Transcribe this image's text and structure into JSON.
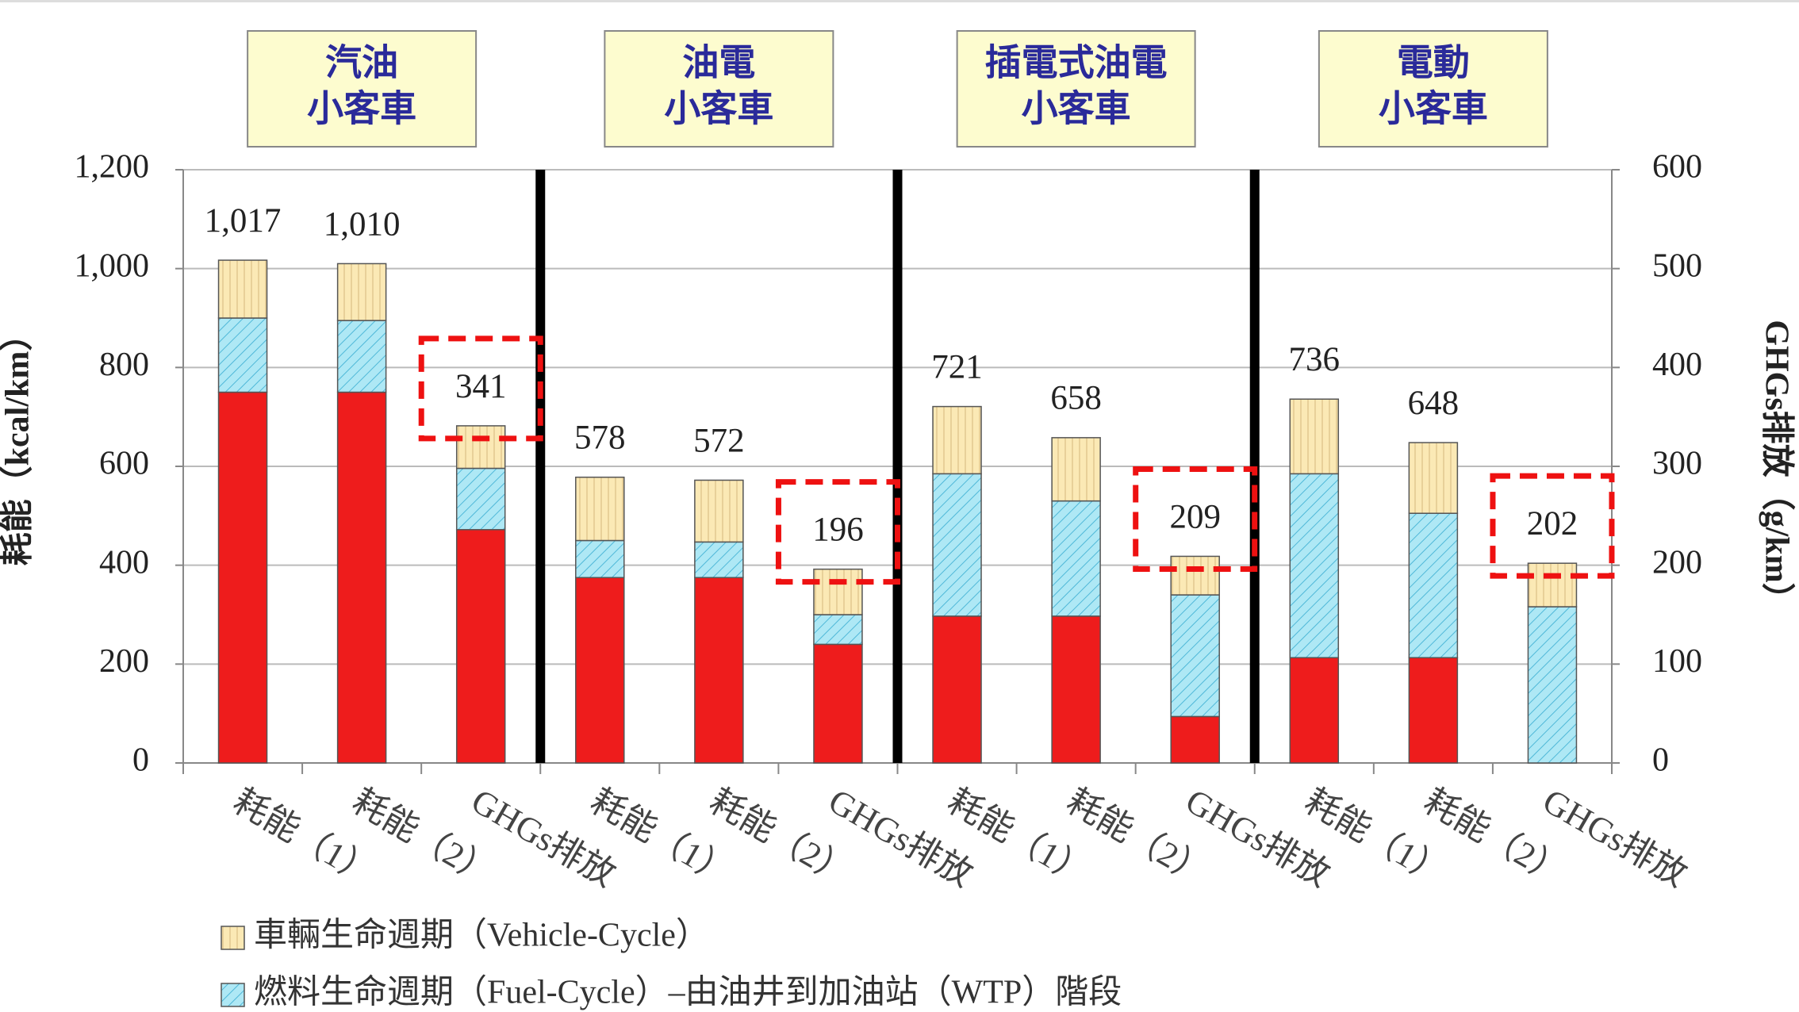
{
  "chart_data": {
    "type": "stacked_bar",
    "groups": [
      {
        "lines": [
          "汽油",
          "小客車"
        ]
      },
      {
        "lines": [
          "油電",
          "小客車"
        ]
      },
      {
        "lines": [
          "插電式油電",
          "小客車"
        ]
      },
      {
        "lines": [
          "電動",
          "小客車"
        ]
      }
    ],
    "categories": [
      "耗能（1）",
      "耗能（2）",
      "GHGs排放",
      "耗能（1）",
      "耗能（2）",
      "GHGs排放",
      "耗能（1）",
      "耗能（2）",
      "GHGs排放",
      "耗能（1）",
      "耗能（2）",
      "GHGs排放"
    ],
    "series": [
      {
        "color": "#ee1c1c",
        "axis": "y",
        "values": [
          750,
          750,
          null,
          375,
          375,
          null,
          297,
          297,
          null,
          213,
          213,
          null
        ]
      },
      {
        "name": "燃料生命週期（Fuel-Cycle）–由油井到加油站（WTP）階段",
        "color": "#aee8f5",
        "axis": "y",
        "values": [
          150,
          145,
          null,
          75,
          72,
          null,
          288,
          233,
          null,
          372,
          292,
          null
        ]
      },
      {
        "name": "車輛生命週期（Vehicle-Cycle）",
        "color": "#fbe9b5",
        "axis": "y",
        "values": [
          117,
          115,
          null,
          128,
          125,
          null,
          136,
          128,
          null,
          151,
          143,
          null
        ]
      },
      {
        "color": "#ee1c1c",
        "axis": "y2",
        "values": [
          null,
          null,
          236,
          null,
          null,
          120,
          null,
          null,
          47,
          null,
          null,
          0
        ]
      },
      {
        "color": "#aee8f5",
        "axis": "y2",
        "values": [
          null,
          null,
          62,
          null,
          null,
          30,
          null,
          null,
          123,
          null,
          null,
          158
        ]
      },
      {
        "color": "#fbe9b5",
        "axis": "y2",
        "values": [
          null,
          null,
          43,
          null,
          null,
          46,
          null,
          null,
          39,
          null,
          null,
          44
        ]
      }
    ],
    "totals": {
      "values": [
        1017,
        1010,
        341,
        578,
        572,
        196,
        721,
        658,
        209,
        736,
        648,
        202
      ],
      "value_labels": [
        "1,017",
        "1,010",
        "341",
        "578",
        "572",
        "196",
        "721",
        "658",
        "209",
        "736",
        "648",
        "202"
      ]
    },
    "ylabel": "耗能（kcal/km）",
    "y2label": "GHGs排放（g/km）",
    "ylim": [
      0,
      1200
    ],
    "yticks": [
      0,
      200,
      400,
      600,
      800,
      {
        "value": 1000,
        "label": "1,000"
      },
      {
        "value": 1200,
        "label": "1,200"
      }
    ],
    "y2lim": [
      0,
      600
    ],
    "y2ticks": [
      0,
      100,
      200,
      300,
      400,
      500,
      600
    ],
    "grid": true
  }
}
